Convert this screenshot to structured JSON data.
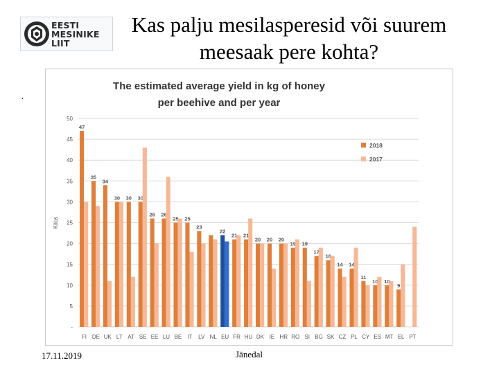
{
  "slide": {
    "title": "Kas palju mesilasperesid või suurem meesaak pere kohta?",
    "bullet": "·",
    "footer_date": "17.11.2019",
    "footer_author": "Jänedal"
  },
  "logo": {
    "line1": "EESTI",
    "line2": "MESINIKE",
    "line3": "LIIT",
    "icon": "bee-shield-icon"
  },
  "chart_data": {
    "type": "bar",
    "title_line1": "The estimated average yield in kg of honey",
    "title_line2": "per beehive and per year",
    "ylabel": "Kilos",
    "xlabel": "",
    "ylim": [
      0,
      50
    ],
    "yticks": [
      "-",
      "5",
      "10",
      "15",
      "20",
      "25",
      "30",
      "35",
      "40",
      "45",
      "50"
    ],
    "grid": true,
    "legend_position": "right",
    "categories": [
      "FI",
      "DE",
      "UK",
      "LT",
      "AT",
      "SE",
      "EE",
      "LU",
      "BE",
      "IT",
      "LV",
      "NL",
      "EU",
      "FR",
      "HU",
      "DK",
      "IE",
      "HR",
      "RO",
      "SI",
      "BG",
      "SK",
      "CZ",
      "PL",
      "CY",
      "ES",
      "MT",
      "EL",
      "PT"
    ],
    "series": [
      {
        "name": "2018",
        "color": "#e07f3a",
        "values": [
          47,
          35,
          34,
          30,
          30,
          30,
          26,
          26,
          25,
          25,
          23,
          22,
          22,
          21,
          21,
          20,
          20,
          20,
          19,
          19,
          17,
          16,
          14,
          14,
          11,
          10,
          10,
          9,
          null
        ],
        "labels": [
          "47",
          "35",
          "34",
          "30",
          "30",
          "30",
          "26",
          "26",
          "25",
          "25",
          "23",
          "",
          "22",
          "21",
          "21",
          "20",
          "20",
          "20",
          "19",
          "19",
          "17",
          "16",
          "14",
          "14",
          "11",
          "10",
          "10",
          "9",
          ""
        ]
      },
      {
        "name": "2017",
        "color": "#f7b896",
        "values": [
          30,
          29,
          11,
          30,
          12,
          43,
          20,
          36,
          26,
          18,
          20,
          21,
          20.5,
          22,
          26,
          20,
          14,
          20,
          21,
          11,
          19,
          17,
          12,
          19,
          10,
          12,
          11,
          15,
          24
        ],
        "labels": []
      }
    ],
    "highlight": {
      "category": "EU",
      "colors": [
        "#1f4ea1",
        "#2f6fd1"
      ]
    }
  }
}
